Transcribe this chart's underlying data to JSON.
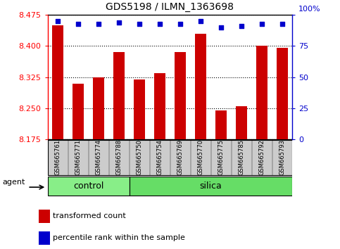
{
  "title": "GDS5198 / ILMN_1363698",
  "samples": [
    "GSM665761",
    "GSM665771",
    "GSM665774",
    "GSM665788",
    "GSM665750",
    "GSM665754",
    "GSM665769",
    "GSM665770",
    "GSM665775",
    "GSM665785",
    "GSM665792",
    "GSM665793"
  ],
  "groups": [
    "control",
    "control",
    "control",
    "control",
    "silica",
    "silica",
    "silica",
    "silica",
    "silica",
    "silica",
    "silica",
    "silica"
  ],
  "transformed_counts": [
    8.45,
    8.31,
    8.325,
    8.385,
    8.32,
    8.335,
    8.385,
    8.43,
    8.245,
    8.255,
    8.4,
    8.395
  ],
  "percentile_ranks": [
    95,
    93,
    93,
    94,
    93,
    93,
    93,
    95,
    90,
    91,
    93,
    93
  ],
  "ymin": 8.175,
  "ymax": 8.475,
  "y_ticks": [
    8.175,
    8.25,
    8.325,
    8.4,
    8.475
  ],
  "right_ticks": [
    0,
    25,
    50,
    75,
    100
  ],
  "bar_color": "#cc0000",
  "dot_color": "#0000cc",
  "control_color": "#88ee88",
  "silica_color": "#66dd66",
  "bar_width": 0.55,
  "plot_bg_color": "#ffffff",
  "legend_red_label": "transformed count",
  "legend_blue_label": "percentile rank within the sample",
  "agent_label": "agent",
  "group_control_label": "control",
  "group_silica_label": "silica",
  "xtick_bg_color": "#cccccc"
}
